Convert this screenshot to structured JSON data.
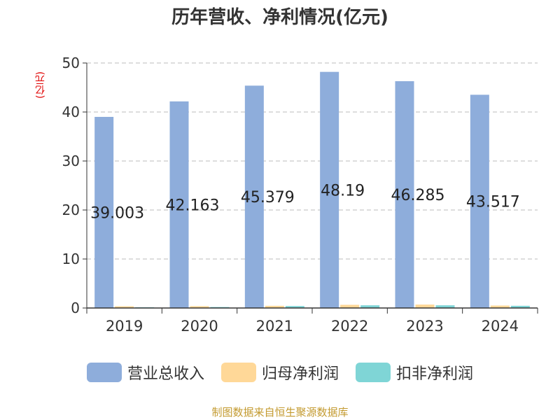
{
  "title": "历年营收、净利情况(亿元)",
  "unit_label": "(亿元)",
  "source": "制图数据来自恒生聚源数据库",
  "colors": {
    "revenue": "#8eaddb",
    "net_profit": "#ffd898",
    "deducted_profit": "#7fd5d6",
    "grid": "#bbbbbb",
    "axis": "#333333"
  },
  "chart_data": {
    "type": "bar",
    "title": "历年营收、净利情况(亿元)",
    "ylabel": "(亿元)",
    "xlabel": "",
    "ylim": [
      0,
      50
    ],
    "yticks": [
      0,
      10,
      20,
      30,
      40,
      50
    ],
    "categories": [
      "2019",
      "2020",
      "2021",
      "2022",
      "2023",
      "2024"
    ],
    "grid": true,
    "legend_position": "bottom",
    "series": [
      {
        "name": "营业总收入",
        "values": [
          39.003,
          42.163,
          45.379,
          48.19,
          46.285,
          43.517
        ],
        "labels": [
          "39.003",
          "42.163",
          "45.379",
          "48.19",
          "46.285",
          "43.517"
        ]
      },
      {
        "name": "归母净利润",
        "values": [
          0.35,
          0.38,
          0.45,
          0.65,
          0.7,
          0.5
        ]
      },
      {
        "name": "扣非净利润",
        "values": [
          0.15,
          0.2,
          0.4,
          0.55,
          0.55,
          0.45
        ]
      }
    ]
  }
}
